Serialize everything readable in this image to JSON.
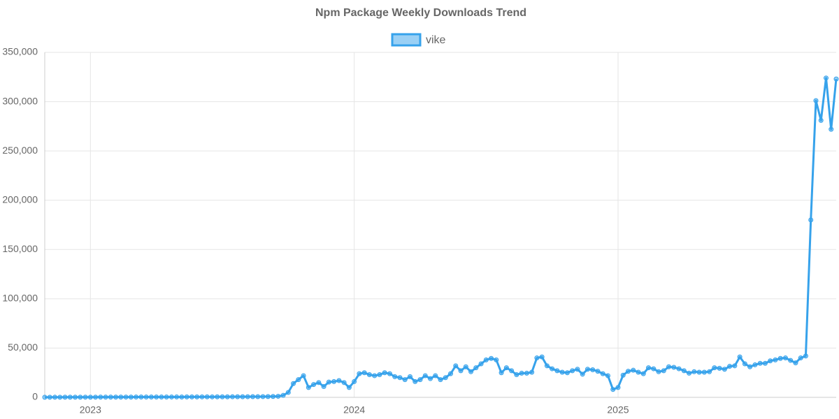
{
  "chart_data": {
    "type": "line",
    "title": "Npm Package Weekly Downloads Trend",
    "categories": [
      null,
      null,
      null,
      null,
      null,
      null,
      null,
      null,
      null,
      "2023",
      null,
      null,
      null,
      null,
      null,
      null,
      null,
      null,
      null,
      null,
      null,
      null,
      null,
      null,
      null,
      null,
      null,
      null,
      null,
      null,
      null,
      null,
      null,
      null,
      null,
      null,
      null,
      null,
      null,
      null,
      null,
      null,
      null,
      null,
      null,
      null,
      null,
      null,
      null,
      null,
      null,
      null,
      null,
      null,
      null,
      null,
      null,
      null,
      null,
      null,
      null,
      "2024",
      null,
      null,
      null,
      null,
      null,
      null,
      null,
      null,
      null,
      null,
      null,
      null,
      null,
      null,
      null,
      null,
      null,
      null,
      null,
      null,
      null,
      null,
      null,
      null,
      null,
      null,
      null,
      null,
      null,
      null,
      null,
      null,
      null,
      null,
      null,
      null,
      null,
      null,
      null,
      null,
      null,
      null,
      null,
      null,
      null,
      null,
      null,
      null,
      null,
      null,
      null,
      "2025",
      null,
      null,
      null,
      null,
      null,
      null,
      null,
      null,
      null,
      null,
      null,
      null,
      null,
      null,
      null,
      null,
      null,
      null,
      null,
      null,
      null,
      null,
      null,
      null,
      null,
      null,
      null,
      null,
      null,
      null,
      null,
      null,
      null,
      null,
      null,
      null,
      null,
      null,
      null,
      null,
      null,
      null,
      null
    ],
    "series": [
      {
        "name": "vike",
        "color": "#36a2eb",
        "values": [
          100,
          120,
          150,
          130,
          160,
          180,
          170,
          200,
          210,
          190,
          220,
          240,
          230,
          260,
          250,
          280,
          300,
          290,
          310,
          330,
          320,
          350,
          340,
          370,
          360,
          390,
          400,
          380,
          420,
          450,
          430,
          470,
          500,
          480,
          520,
          550,
          530,
          580,
          600,
          620,
          650,
          700,
          680,
          750,
          800,
          900,
          1100,
          2000,
          5000,
          14000,
          18000,
          22000,
          10000,
          13000,
          15000,
          11000,
          15500,
          16000,
          17000,
          15000,
          10000,
          16000,
          24000,
          25000,
          23000,
          22000,
          23000,
          25000,
          24000,
          21000,
          20000,
          18000,
          21000,
          16000,
          18000,
          22000,
          19000,
          22000,
          18000,
          20000,
          24000,
          32000,
          27000,
          31000,
          26000,
          30000,
          34000,
          38000,
          39500,
          38000,
          25000,
          30000,
          27000,
          23000,
          24500,
          24500,
          25500,
          40000,
          41000,
          32000,
          29000,
          27000,
          25500,
          25000,
          27000,
          28500,
          23500,
          28500,
          28000,
          26500,
          24000,
          22000,
          8000,
          10000,
          22500,
          26500,
          27500,
          25500,
          24000,
          30000,
          29000,
          26000,
          27000,
          31000,
          30500,
          29000,
          27000,
          24500,
          26000,
          25500,
          25500,
          26000,
          30000,
          29500,
          28500,
          31500,
          32000,
          41000,
          34000,
          31000,
          33000,
          34500,
          34500,
          37000,
          38000,
          39500,
          40000,
          37500,
          35000,
          40000,
          42000,
          180000,
          301000,
          281000,
          324000,
          272000,
          323000
        ]
      }
    ],
    "ylim": [
      0,
      350000
    ],
    "yticks": [
      0,
      {
        "value": 50000,
        "label": "50,000"
      },
      {
        "value": 100000,
        "label": "100,000"
      },
      {
        "value": 150000,
        "label": "150,000"
      },
      {
        "value": 200000,
        "label": "200,000"
      },
      {
        "value": 250000,
        "label": "250,000"
      },
      {
        "value": 300000,
        "label": "300,000"
      },
      {
        "value": 350000,
        "label": "350,000"
      }
    ],
    "grid": true,
    "legend": "top"
  }
}
